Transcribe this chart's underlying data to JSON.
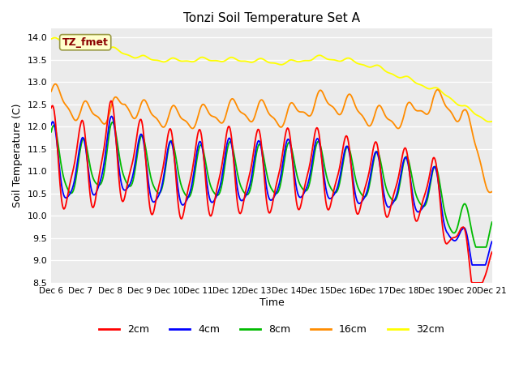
{
  "title": "Tonzi Soil Temperature Set A",
  "xlabel": "Time",
  "ylabel": "Soil Temperature (C)",
  "ylim": [
    8.5,
    14.2
  ],
  "xlim": [
    0,
    15
  ],
  "colors": {
    "2cm": "#FF0000",
    "4cm": "#0000FF",
    "8cm": "#00BB00",
    "16cm": "#FF8C00",
    "32cm": "#FFFF00"
  },
  "legend_labels": [
    "2cm",
    "4cm",
    "8cm",
    "16cm",
    "32cm"
  ],
  "x_tick_labels": [
    "Dec 6",
    "Dec 7",
    "Dec 8",
    "Dec 9",
    "Dec 10",
    "Dec 11",
    "Dec 12",
    "Dec 13",
    "Dec 14",
    "Dec 15",
    "Dec 16",
    "Dec 17",
    "Dec 18",
    "Dec 19",
    "Dec 20",
    "Dec 21"
  ],
  "annotation_text": "TZ_fmet",
  "annotation_color": "#8B0000",
  "annotation_bg": "#FFFFCC",
  "background_color": "#EBEBEB",
  "grid_color": "#FFFFFF"
}
